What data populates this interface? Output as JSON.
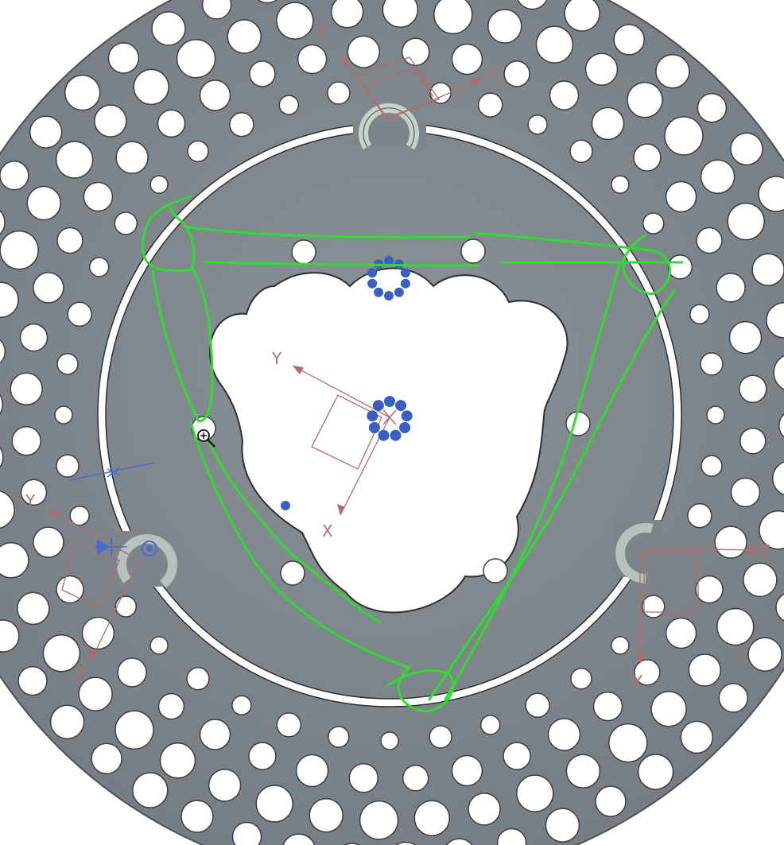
{
  "viewport": {
    "background": "#ffffff",
    "part_color": "#7d858b",
    "sketch_color": "#2fdc2f",
    "csys_color": "#b56a6a",
    "point_color": "#3a5fc2"
  },
  "csys_labels": {
    "top_z": "Z",
    "top_y": "Y",
    "center_y": "Y",
    "center_x": "X",
    "left_y": "Y",
    "left_z": "Z",
    "right_z": "Z",
    "right_y": "Y"
  },
  "cursor": {
    "icon": "zoom-cursor-icon"
  }
}
